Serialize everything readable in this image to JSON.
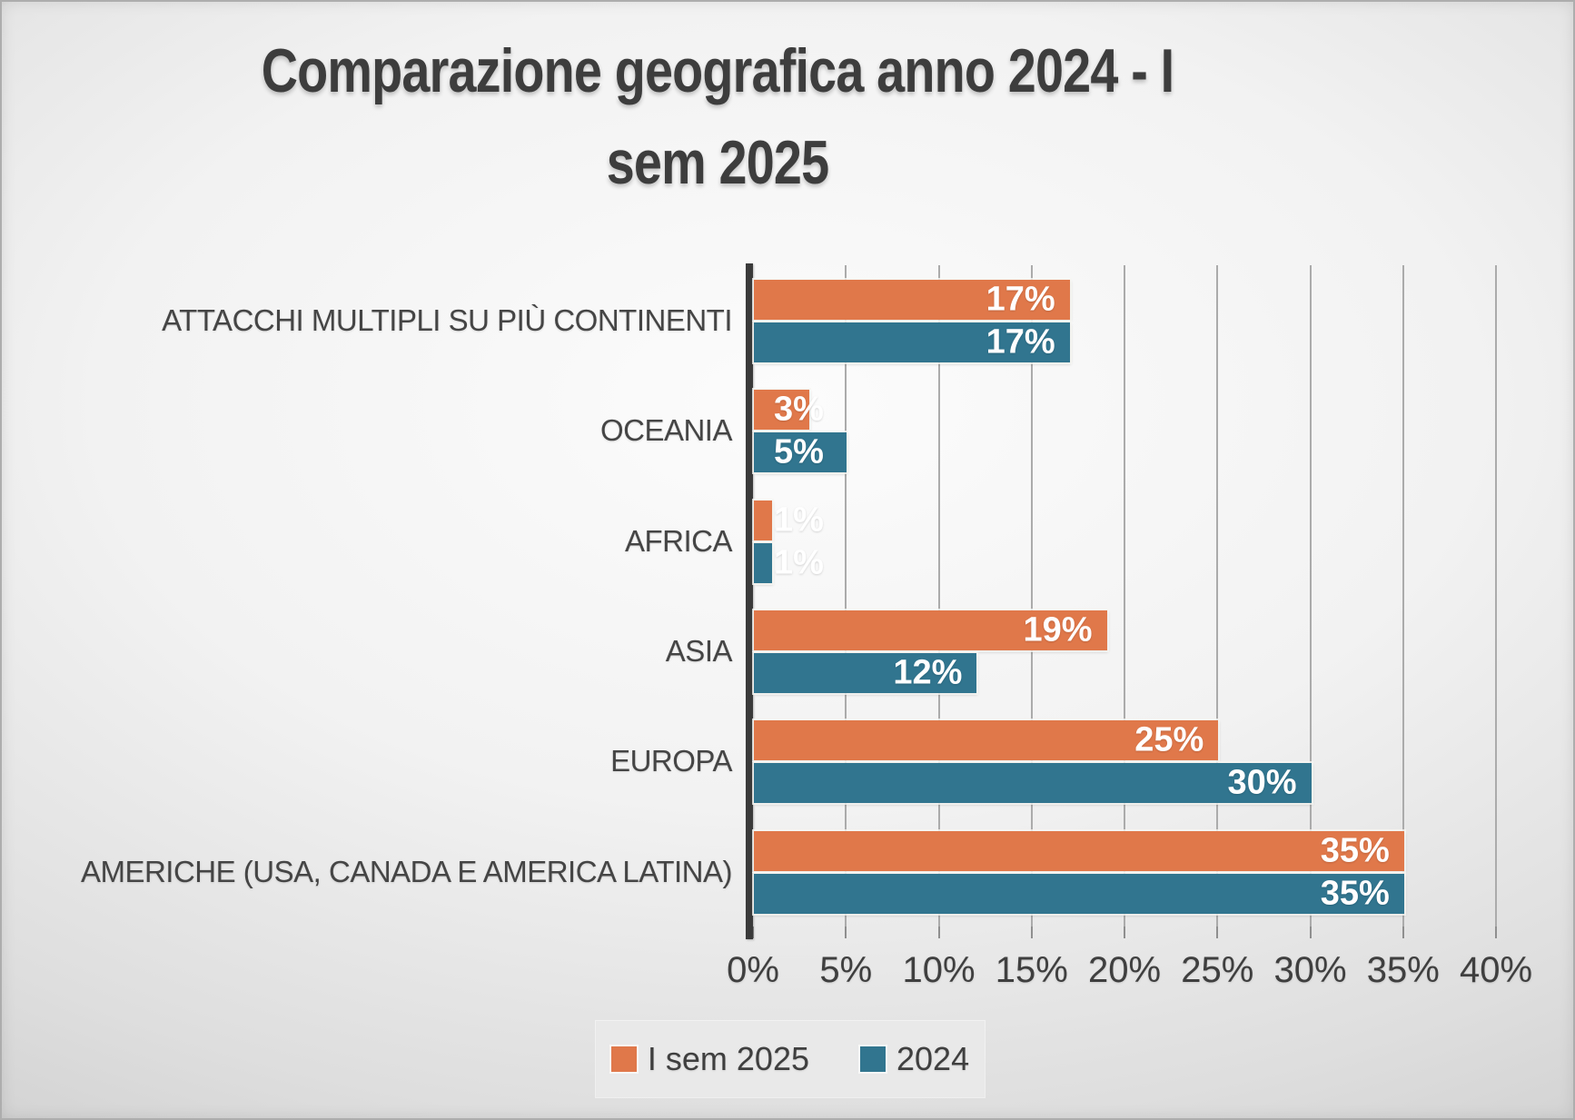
{
  "title": {
    "full": "Comparazione geografica anno 2024 - I sem 2025",
    "lines": [
      "Comparazione geografica anno 2024 - I",
      "sem 2025"
    ]
  },
  "chart_data": {
    "type": "bar",
    "orientation": "horizontal",
    "title": "Comparazione geografica anno 2024 - I sem 2025",
    "categories": [
      "ATTACCHI MULTIPLI SU PIÙ CONTINENTI",
      "OCEANIA",
      "AFRICA",
      "ASIA",
      "EUROPA",
      "AMERICHE (USA, CANADA E AMERICA LATINA)"
    ],
    "series": [
      {
        "name": "I sem 2025",
        "color": "#E0784A",
        "values": [
          17,
          3,
          1,
          19,
          25,
          35
        ]
      },
      {
        "name": "2024",
        "color": "#31758F",
        "values": [
          17,
          5,
          1,
          12,
          30,
          35
        ]
      }
    ],
    "value_suffix": "%",
    "data_labels": {
      "I sem 2025": [
        "17%",
        "3%",
        "1%",
        "19%",
        "25%",
        "35%"
      ],
      "2024": [
        "17%",
        "5%",
        "1%",
        "12%",
        "30%",
        "35%"
      ]
    },
    "xlim": [
      0,
      40
    ],
    "x_tick_step": 5,
    "x_ticks": [
      "0%",
      "5%",
      "10%",
      "15%",
      "20%",
      "25%",
      "30%",
      "35%",
      "40%"
    ],
    "grid": "vertical-gridlines-on",
    "legend_position": "bottom"
  },
  "legend": {
    "items": [
      {
        "label": "I sem 2025",
        "color": "#E0784A"
      },
      {
        "label": "2024",
        "color": "#31758F"
      }
    ]
  },
  "colors": {
    "series_orange": "#E0784A",
    "series_teal": "#31758F",
    "title_text": "#3d3d3d",
    "axis_line": "#3a3a3a",
    "gridline": "#ababab",
    "tick_label": "#3f3f3f",
    "category_label": "#454545",
    "bar_value_label": "#ffffff",
    "legend_background": "#e9e9e9",
    "slide_background_edge": "#c2c2c2",
    "slide_background_center": "#fcfcfc"
  }
}
